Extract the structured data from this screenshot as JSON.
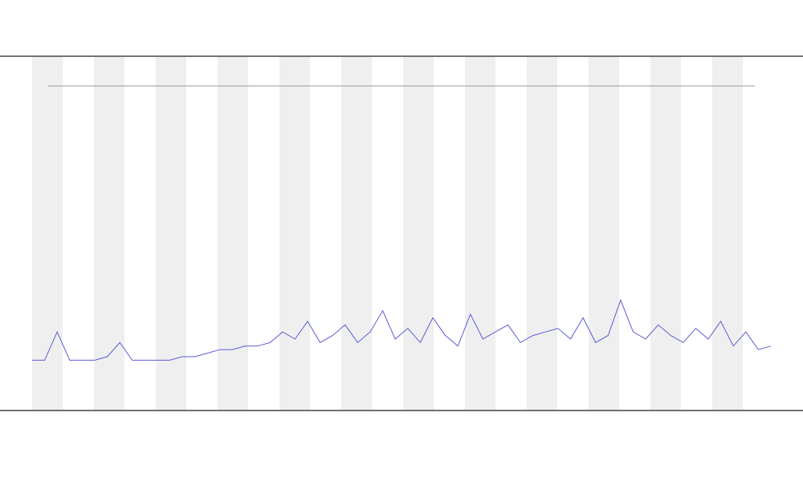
{
  "chart_data": {
    "type": "line",
    "series": [
      {
        "color": "#5b5bd6",
        "values": [
          14,
          14,
          22,
          14,
          14,
          14,
          15,
          19,
          14,
          14,
          14,
          14,
          15,
          15,
          16,
          17,
          17,
          18,
          18,
          19,
          22,
          20,
          25,
          19,
          21,
          24,
          19,
          22,
          28,
          20,
          23,
          19,
          26,
          21,
          18,
          27,
          20,
          22,
          24,
          19,
          21,
          22,
          23,
          20,
          26,
          19,
          21,
          31,
          22,
          20,
          24,
          21,
          19,
          23,
          20,
          25,
          18,
          22,
          17,
          18
        ]
      }
    ],
    "ylim": [
      0,
      100
    ]
  }
}
